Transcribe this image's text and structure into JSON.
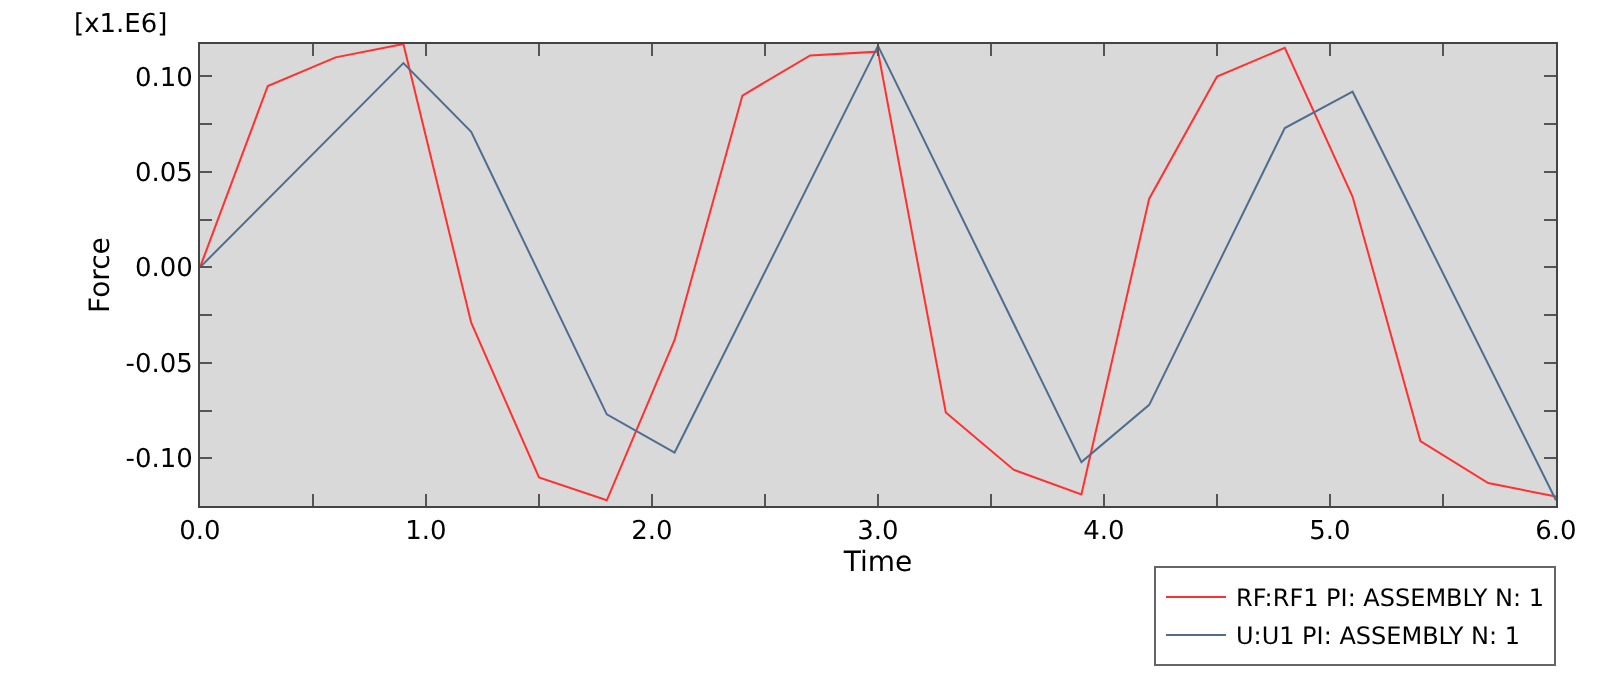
{
  "chart_data": {
    "type": "line",
    "xlabel": "Time",
    "ylabel": "Force",
    "annotations": [
      "[x1.E6]"
    ],
    "xlim": [
      0,
      6
    ],
    "xticks": [
      {
        "value": 0,
        "label": "0.0"
      },
      {
        "value": 0.5,
        "label": null
      },
      {
        "value": 1,
        "label": "1.0"
      },
      {
        "value": 1.5,
        "label": null
      },
      {
        "value": 2,
        "label": "2.0"
      },
      {
        "value": 2.5,
        "label": null
      },
      {
        "value": 3,
        "label": "3.0"
      },
      {
        "value": 3.5,
        "label": null
      },
      {
        "value": 4,
        "label": "4.0"
      },
      {
        "value": 4.5,
        "label": null
      },
      {
        "value": 5,
        "label": "5.0"
      },
      {
        "value": 5.5,
        "label": null
      },
      {
        "value": 6,
        "label": "6.0"
      }
    ],
    "ylim": [
      -0.125,
      0.117
    ],
    "yticks": [
      {
        "value": -0.1,
        "label": "-0.10"
      },
      {
        "value": -0.075,
        "label": null
      },
      {
        "value": -0.05,
        "label": "-0.05"
      },
      {
        "value": -0.025,
        "label": null
      },
      {
        "value": 0,
        "label": "0.00"
      },
      {
        "value": 0.025,
        "label": null
      },
      {
        "value": 0.05,
        "label": "0.05"
      },
      {
        "value": 0.075,
        "label": null
      },
      {
        "value": 0.1,
        "label": "0.10"
      }
    ],
    "grid": false,
    "legend": "bottom right",
    "line_style": "solid",
    "series": [
      {
        "name": "RF:RF1 PI: ASSEMBLY N: 1",
        "color": "#ff3030",
        "x": [
          0,
          0.3,
          0.6,
          0.9,
          1.2,
          1.5,
          1.8,
          2.1,
          2.4,
          2.7,
          3.0,
          3.3,
          3.6,
          3.9,
          4.2,
          4.5,
          4.8,
          5.1,
          5.4,
          5.7,
          6.0
        ],
        "values": [
          0,
          0.095,
          0.11,
          0.117,
          -0.029,
          -0.11,
          -0.122,
          -0.038,
          0.09,
          0.111,
          0.113,
          -0.076,
          -0.106,
          -0.119,
          0.036,
          0.1,
          0.115,
          0.037,
          -0.091,
          -0.113,
          -0.12
        ]
      },
      {
        "name": "U:U1 PI: ASSEMBLY N: 1",
        "color": "#4f6d8f",
        "x": [
          0,
          0.9,
          1.2,
          1.8,
          2.1,
          3.0,
          3.9,
          4.2,
          4.8,
          5.1,
          6.0
        ],
        "values": [
          0,
          0.107,
          0.071,
          -0.077,
          -0.097,
          0.116,
          -0.102,
          -0.072,
          0.073,
          0.092,
          -0.122
        ]
      }
    ]
  }
}
